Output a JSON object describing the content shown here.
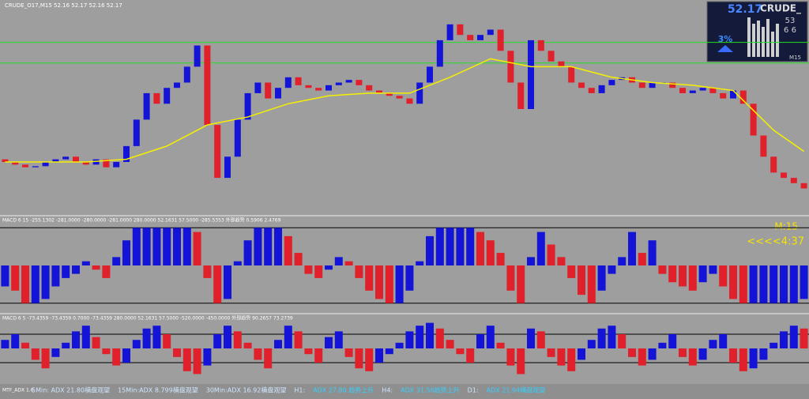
{
  "header": {
    "symbol_line": "CRUDE_O17,M15  52.16 52.17 52.16 52.17"
  },
  "price_panel": {
    "ylim": [
      49.5,
      53.5
    ],
    "levels": [
      52.76,
      52.37
    ],
    "open": [
      50.55,
      50.5,
      50.45,
      50.4,
      50.42,
      50.5,
      50.55,
      50.6,
      50.5,
      50.45,
      50.55,
      50.4,
      50.5,
      50.8,
      51.3,
      51.8,
      51.6,
      51.9,
      52.0,
      52.3,
      52.7,
      51.2,
      50.2,
      50.6,
      51.3,
      51.8,
      52.0,
      51.7,
      51.9,
      52.1,
      51.95,
      51.9,
      51.85,
      51.95,
      52.0,
      52.05,
      51.95,
      51.85,
      51.8,
      51.75,
      51.7,
      51.6,
      52.0,
      52.3,
      52.8,
      53.1,
      52.9,
      52.8,
      52.9,
      53.0,
      52.6,
      52.0,
      51.5,
      52.8,
      52.6,
      52.4,
      52.3,
      52.0,
      51.9,
      51.8,
      51.95,
      52.05,
      52.1,
      52.0,
      51.9,
      52.0,
      52.0,
      51.9,
      51.8,
      51.85,
      51.9,
      51.8,
      51.7,
      51.85,
      51.6,
      51.0,
      50.6,
      50.3,
      50.2,
      50.1
    ],
    "close": [
      50.5,
      50.45,
      50.4,
      50.42,
      50.5,
      50.55,
      50.6,
      50.5,
      50.45,
      50.55,
      50.4,
      50.5,
      50.8,
      51.3,
      51.8,
      51.6,
      51.9,
      52.0,
      52.3,
      52.7,
      51.2,
      50.2,
      50.6,
      51.3,
      51.8,
      52.0,
      51.7,
      51.9,
      52.1,
      51.95,
      51.9,
      51.85,
      51.95,
      52.0,
      52.05,
      51.95,
      51.85,
      51.8,
      51.75,
      51.7,
      51.6,
      52.0,
      52.3,
      52.8,
      53.1,
      52.9,
      52.8,
      52.9,
      53.0,
      52.6,
      52.0,
      51.5,
      52.8,
      52.6,
      52.4,
      52.3,
      52.0,
      51.9,
      51.8,
      51.95,
      52.05,
      52.1,
      52.0,
      51.9,
      52.0,
      52.0,
      51.9,
      51.8,
      51.85,
      51.9,
      51.8,
      51.7,
      51.85,
      51.6,
      51.0,
      50.6,
      50.3,
      50.2,
      50.1,
      50.0
    ],
    "ma_index": [
      0,
      4,
      8,
      12,
      16,
      20,
      24,
      28,
      32,
      36,
      40,
      44,
      48,
      52,
      56,
      60,
      64,
      68,
      72,
      76,
      79
    ],
    "ma": [
      50.5,
      50.5,
      50.5,
      50.55,
      50.8,
      51.2,
      51.35,
      51.6,
      51.75,
      51.8,
      51.8,
      52.1,
      52.45,
      52.3,
      52.3,
      52.1,
      52.0,
      51.95,
      51.85,
      51.1,
      50.7
    ]
  },
  "macd1": {
    "label": "MACD 6 15 -255.1302 -281.0000 -280.0000 -281.0000 280.0000 52.1631 57.5000 -285.5353 外部趋势 0.5906 2.4769",
    "timeframe": "M:15",
    "countdown": "<<<<4:37",
    "levels": [
      0.9,
      -0.9
    ],
    "values": [
      -0.5,
      -0.6,
      -0.9,
      -0.9,
      -0.8,
      -0.5,
      -0.3,
      -0.2,
      0.1,
      -0.1,
      -0.3,
      0.2,
      0.6,
      0.9,
      0.9,
      0.9,
      0.9,
      0.9,
      0.9,
      0.8,
      -0.3,
      -0.9,
      -0.8,
      0.1,
      0.6,
      0.9,
      0.9,
      0.9,
      0.7,
      0.3,
      -0.2,
      -0.3,
      -0.1,
      0.2,
      0.1,
      -0.3,
      -0.6,
      -0.8,
      -0.9,
      -0.9,
      -0.6,
      0.1,
      0.7,
      0.9,
      0.9,
      0.9,
      0.9,
      0.8,
      0.6,
      0.3,
      -0.6,
      -0.9,
      0.2,
      0.8,
      0.5,
      0.2,
      -0.3,
      -0.7,
      -0.9,
      -0.6,
      -0.2,
      0.2,
      0.8,
      0.3,
      0.6,
      -0.2,
      -0.4,
      -0.5,
      -0.6,
      -0.4,
      -0.2,
      -0.5,
      -0.8,
      -0.9,
      -0.9,
      -0.9,
      -0.9,
      -0.9,
      -0.9,
      -0.8
    ]
  },
  "macd2": {
    "label": "MACD 6 5 -73.4359 -73.4359 0.7000 -73.4359 280.0000 52.1631 57.5000 -520.0000 -450.0000 外部趋势 90.2657 73.2739",
    "levels": [
      0.5,
      -0.5
    ],
    "values": [
      0.3,
      0.5,
      0.2,
      -0.4,
      -0.7,
      -0.3,
      0.2,
      0.6,
      0.8,
      0.4,
      -0.2,
      -0.6,
      -0.5,
      0.3,
      0.7,
      0.8,
      0.5,
      -0.3,
      -0.8,
      -0.9,
      -0.6,
      0.5,
      0.8,
      0.6,
      0.2,
      -0.4,
      -0.7,
      0.3,
      0.8,
      0.6,
      -0.2,
      -0.5,
      0.4,
      0.6,
      -0.3,
      -0.7,
      -0.8,
      -0.5,
      -0.2,
      0.2,
      0.6,
      0.8,
      0.9,
      0.7,
      0.3,
      -0.2,
      -0.5,
      0.5,
      0.8,
      0.2,
      -0.6,
      -0.9,
      0.7,
      0.6,
      -0.3,
      -0.6,
      -0.8,
      -0.4,
      0.3,
      0.7,
      0.8,
      0.5,
      -0.3,
      -0.6,
      -0.4,
      0.2,
      0.5,
      -0.3,
      -0.6,
      -0.4,
      0.3,
      0.5,
      -0.5,
      -0.8,
      -0.7,
      -0.4,
      0.2,
      0.6,
      0.8,
      0.7
    ]
  },
  "widget": {
    "price": "52.17",
    "symbol": "CRUDE_",
    "percent": "3%",
    "n1": "53",
    "n2": "6 6",
    "tf": "M15"
  },
  "status": {
    "name": "MTF_ADX 1.6",
    "parts": [
      "5Min: ADX 21.80横盘观望",
      "15Min:ADX 8.799横盘观望",
      "30Min:ADX 16.92横盘观望",
      "H1:",
      "ADX 27.80 趋势上升",
      "H4:",
      "ADX 31.56趋势上升",
      "D1:",
      "ADX 21.94横盘观望"
    ]
  }
}
